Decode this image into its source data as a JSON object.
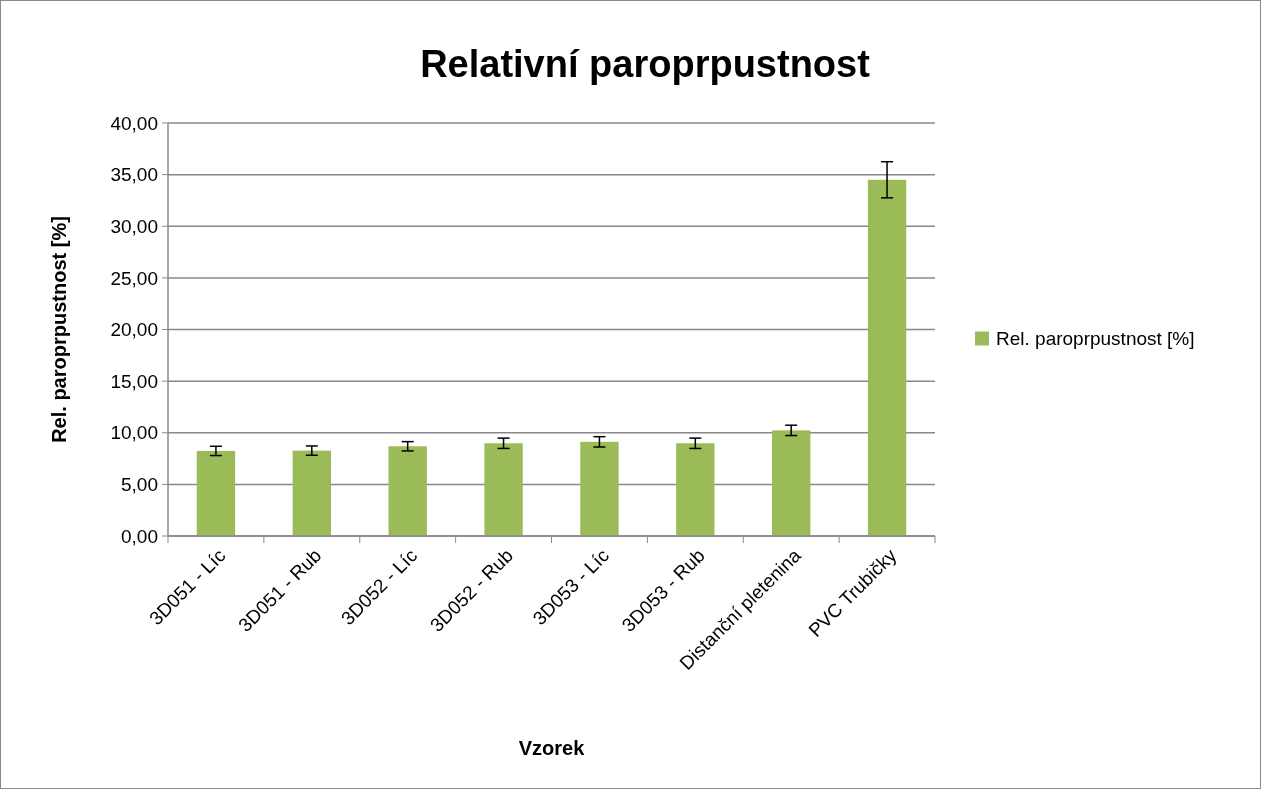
{
  "chart_data": {
    "type": "bar",
    "title": "Relativní paroprpustnost",
    "xlabel": "Vzorek",
    "ylabel": "Rel. paroprpustnost [%]",
    "categories": [
      "3D051 - Líc",
      "3D051 - Rub",
      "3D052 - Líc",
      "3D052 - Rub",
      "3D053 - Líc",
      "3D053 - Rub",
      "Distanční pletenina",
      "PVC Trubičky"
    ],
    "series": [
      {
        "name": "Rel. paroprpustnost [%]",
        "color": "#9bbb59",
        "values": [
          8.24,
          8.27,
          8.69,
          8.98,
          9.12,
          8.98,
          10.23,
          34.5
        ],
        "errors": [
          0.45,
          0.45,
          0.45,
          0.5,
          0.5,
          0.5,
          0.5,
          1.75
        ]
      }
    ],
    "ylim": [
      0,
      40
    ],
    "yticks": [
      {
        "value": 0,
        "label": "0,00"
      },
      {
        "value": 5,
        "label": "5,00"
      },
      {
        "value": 10,
        "label": "10,00"
      },
      {
        "value": 15,
        "label": "15,00"
      },
      {
        "value": 20,
        "label": "20,00"
      },
      {
        "value": 25,
        "label": "25,00"
      },
      {
        "value": 30,
        "label": "30,00"
      },
      {
        "value": 35,
        "label": "35,00"
      },
      {
        "value": 40,
        "label": "40,00"
      }
    ],
    "grid": "y",
    "legend": "right"
  }
}
